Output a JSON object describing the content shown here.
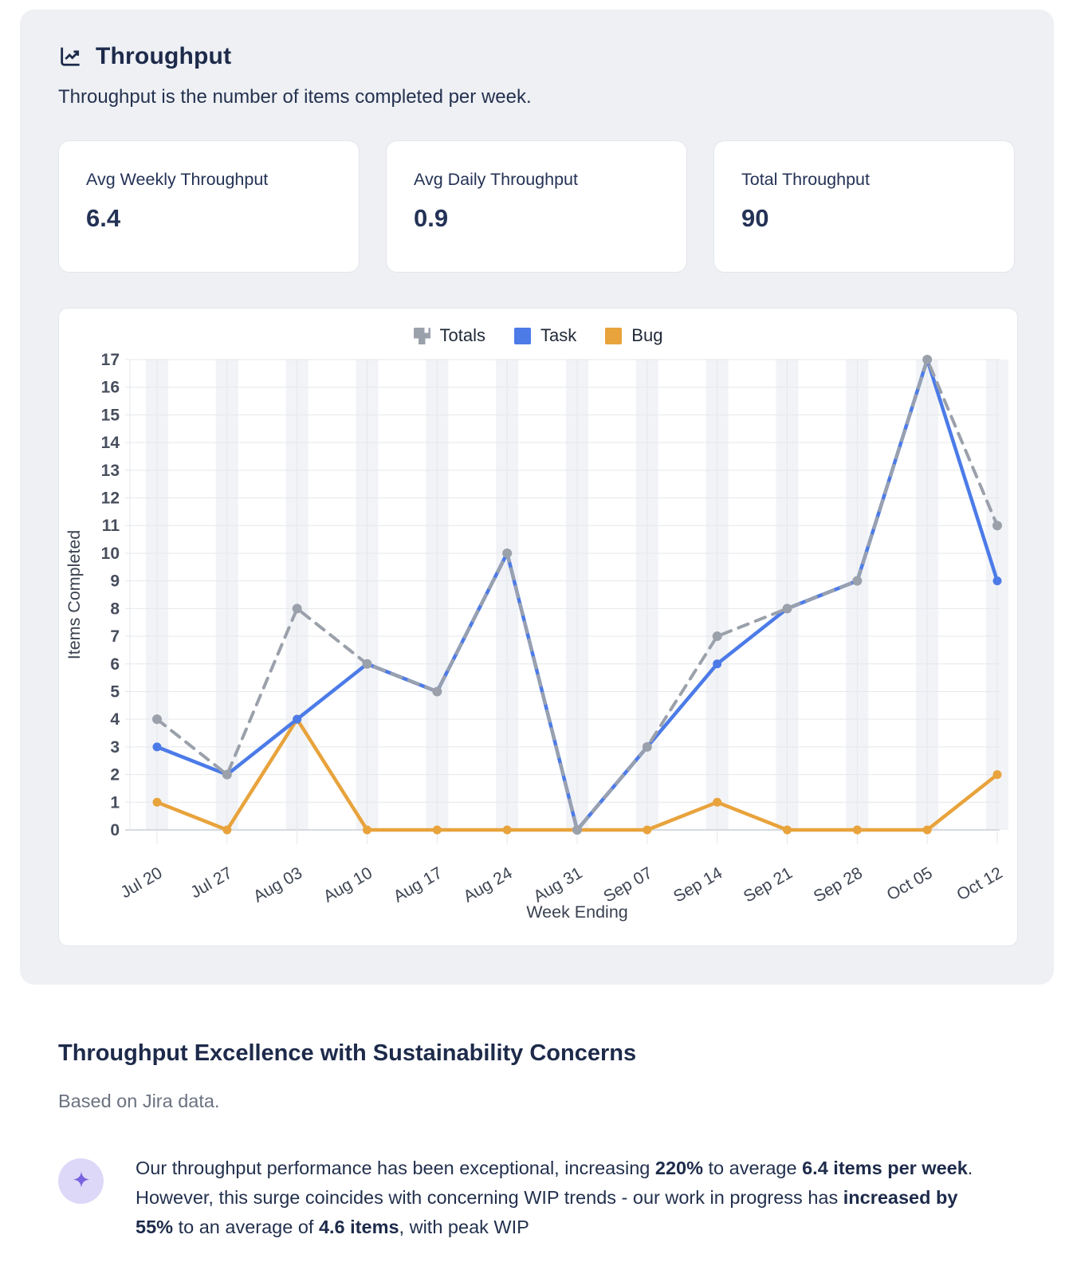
{
  "panel": {
    "title": "Throughput",
    "subtitle": "Throughput is the number of items completed per week."
  },
  "stats": [
    {
      "label": "Avg Weekly Throughput",
      "value": "6.4"
    },
    {
      "label": "Avg Daily Throughput",
      "value": "0.9"
    },
    {
      "label": "Total Throughput",
      "value": "90"
    }
  ],
  "chart_data": {
    "type": "line",
    "x": [
      "Jul 20",
      "Jul 27",
      "Aug 03",
      "Aug 10",
      "Aug 17",
      "Aug 24",
      "Aug 31",
      "Sep 07",
      "Sep 14",
      "Sep 21",
      "Sep 28",
      "Oct 05",
      "Oct 12"
    ],
    "series": [
      {
        "name": "Totals",
        "color": "#9ba1ab",
        "dash": true,
        "values": [
          4,
          2,
          8,
          6,
          5,
          10,
          0,
          3,
          7,
          8,
          9,
          17,
          11
        ]
      },
      {
        "name": "Task",
        "color": "#4c7be8",
        "dash": false,
        "values": [
          3,
          2,
          4,
          6,
          5,
          10,
          0,
          3,
          6,
          8,
          9,
          17,
          9
        ]
      },
      {
        "name": "Bug",
        "color": "#e8a33c",
        "dash": false,
        "values": [
          1,
          0,
          4,
          0,
          0,
          0,
          0,
          0,
          1,
          0,
          0,
          0,
          2
        ]
      }
    ],
    "xlabel": "Week Ending",
    "ylabel": "Items Completed",
    "ylim": [
      0,
      17
    ],
    "ytick_step": 1,
    "grid": true,
    "legend_position": "top"
  },
  "analysis": {
    "heading": "Throughput Excellence with Sustainability Concerns",
    "source": "Based on Jira data.",
    "insight_segments": [
      {
        "text": "Our throughput performance has been exceptional, increasing ",
        "bold": false
      },
      {
        "text": "220%",
        "bold": true
      },
      {
        "text": " to average ",
        "bold": false
      },
      {
        "text": "6.4 items per week",
        "bold": true
      },
      {
        "text": ". However, this surge coincides with concerning WIP trends - our work in progress has ",
        "bold": false
      },
      {
        "text": "increased by 55%",
        "bold": true
      },
      {
        "text": " to an average of ",
        "bold": false
      },
      {
        "text": "4.6 items",
        "bold": true
      },
      {
        "text": ", with peak WIP",
        "bold": false
      }
    ]
  },
  "icons": {
    "header": "chart-line-icon",
    "insight": "sparkle-icon"
  },
  "colors": {
    "panel_bg": "#eef0f4",
    "card_bg": "#ffffff",
    "navy_text": "#1d2a4a",
    "task_blue": "#4c7be8",
    "bug_orange": "#e8a33c",
    "totals_gray": "#9ba1ab",
    "grid_line": "#e4e7ec",
    "axis_line": "#c9cfd8",
    "band_fill": "#f2f3f6",
    "sparkle_purple": "#7a63e0",
    "sparkle_bg": "#ddd8f8"
  }
}
